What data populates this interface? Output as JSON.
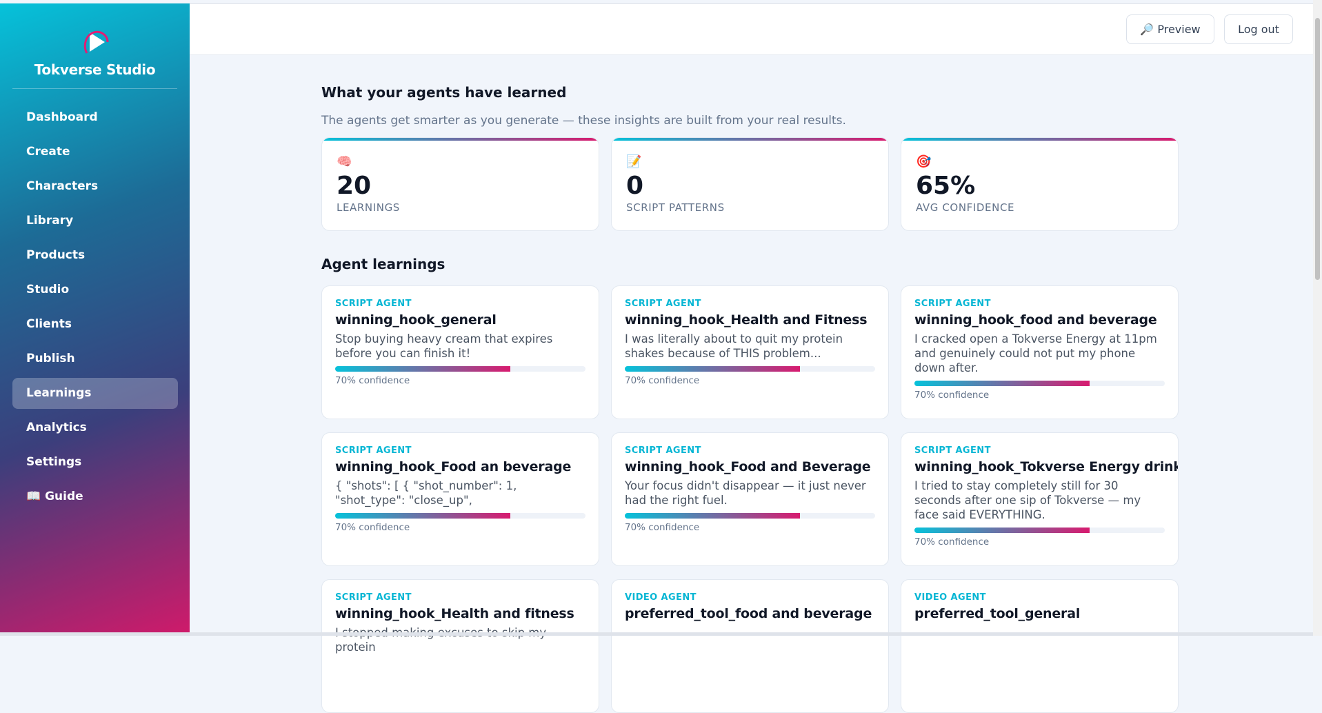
{
  "sidebar": {
    "brand": "Tokverse Studio",
    "nav": [
      "Dashboard",
      "Create",
      "Characters",
      "Library",
      "Products",
      "Studio",
      "Clients",
      "Publish",
      "Learnings",
      "Analytics",
      "Settings",
      "📖 Guide"
    ],
    "active": "Learnings"
  },
  "topbar": {
    "buttons": [
      "🔎 Preview",
      "Log out"
    ]
  },
  "page": {
    "title": "What your agents have learned",
    "subtitle": "The agents get smarter as you generate — these insights are built from your real results.",
    "stats": [
      {
        "icon": "🧠",
        "value": "20",
        "label": "LEARNINGS"
      },
      {
        "icon": "📝",
        "value": "0",
        "label": "SCRIPT PATTERNS"
      },
      {
        "icon": "🎯",
        "value": "65%",
        "label": "AVG CONFIDENCE"
      }
    ],
    "section": "Agent learnings",
    "learnings": [
      {
        "agent": "SCRIPT AGENT",
        "title": "winning_hook_general",
        "text": "Stop buying heavy cream that expires before you can finish it!",
        "confidence": 70,
        "confidence_label": "70% confidence"
      },
      {
        "agent": "SCRIPT AGENT",
        "title": "winning_hook_Health and Fitness",
        "text": "I was literally about to quit my protein shakes because of THIS problem...",
        "confidence": 70,
        "confidence_label": "70% confidence"
      },
      {
        "agent": "SCRIPT AGENT",
        "title": "winning_hook_food and beverage",
        "text": "I cracked open a Tokverse Energy at 11pm and genuinely could not put my phone down after.",
        "confidence": 70,
        "confidence_label": "70% confidence"
      },
      {
        "agent": "SCRIPT AGENT",
        "title": "winning_hook_Food an beverage",
        "text": "{ \"shots\": [ { \"shot_number\": 1, \"shot_type\": \"close_up\",",
        "confidence": 70,
        "confidence_label": "70% confidence"
      },
      {
        "agent": "SCRIPT AGENT",
        "title": "winning_hook_Food and Beverage",
        "text": "Your focus didn't disappear — it just never had the right fuel.",
        "confidence": 70,
        "confidence_label": "70% confidence"
      },
      {
        "agent": "SCRIPT AGENT",
        "title": "winning_hook_Tokverse Energy drink",
        "text": "I tried to stay completely still for 30 seconds after one sip of Tokverse — my face said EVERYTHING.",
        "confidence": 70,
        "confidence_label": "70% confidence"
      },
      {
        "agent": "SCRIPT AGENT",
        "title": "winning_hook_Health and fitness",
        "text": "I stopped making excuses to skip my protein"
      },
      {
        "agent": "VIDEO AGENT",
        "title": "preferred_tool_food and beverage"
      },
      {
        "agent": "VIDEO AGENT",
        "title": "preferred_tool_general"
      }
    ]
  }
}
